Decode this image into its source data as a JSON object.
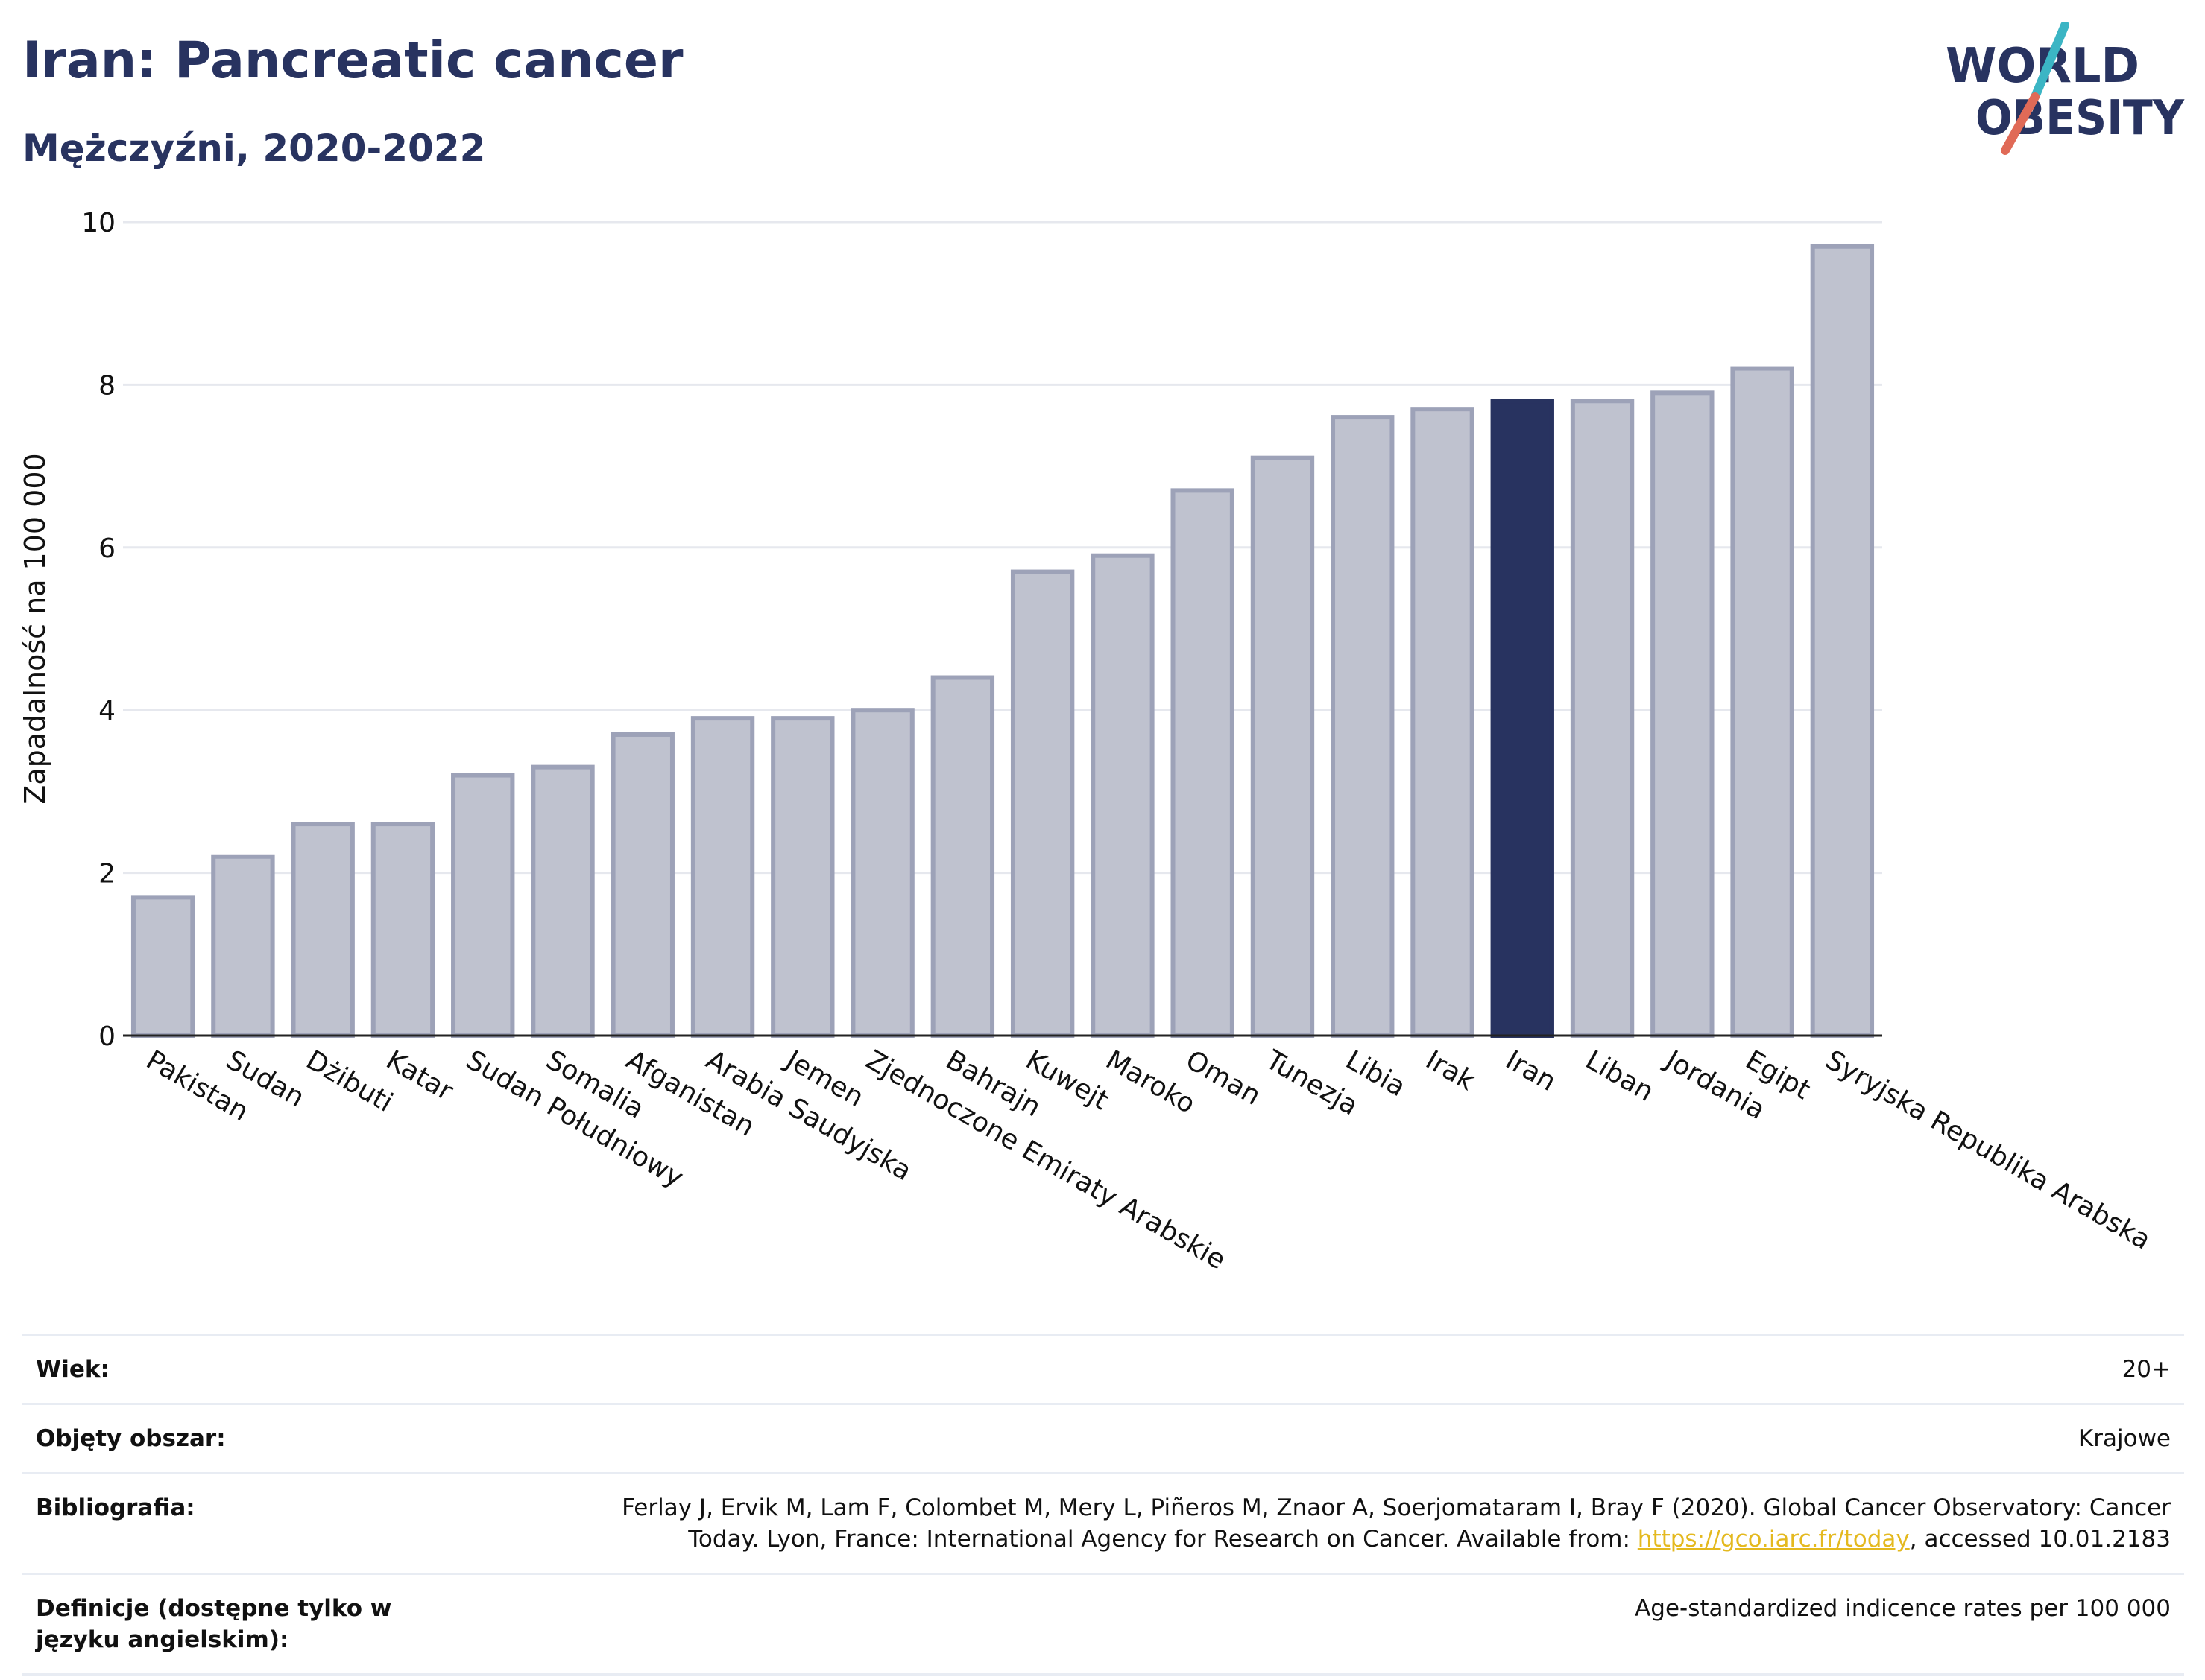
{
  "header": {
    "title": "Iran: Pancreatic cancer",
    "subtitle": "Mężczyźni, 2020-2022"
  },
  "logo": {
    "line1": "WORLD",
    "line2": "OBESITY",
    "colors": {
      "text": "#283360",
      "slash_top": "#3bb5c4",
      "slash_bottom": "#e06a57"
    }
  },
  "chart_data": {
    "type": "bar",
    "title": "",
    "xlabel": "",
    "ylabel": "Zapadalność na 100 000",
    "ylim": [
      0,
      10
    ],
    "yticks": [
      0,
      2,
      4,
      6,
      8,
      10
    ],
    "grid": true,
    "categories": [
      "Pakistan",
      "Sudan",
      "Dżibuti",
      "Katar",
      "Sudan Południowy",
      "Somalia",
      "Afganistan",
      "Arabia Saudyjska",
      "Jemen",
      "Zjednoczone Emiraty Arabskie",
      "Bahrajn",
      "Kuwejt",
      "Maroko",
      "Oman",
      "Tunezja",
      "Libia",
      "Irak",
      "Iran",
      "Liban",
      "Jordania",
      "Egipt",
      "Syryjska Republika Arabska"
    ],
    "values": [
      1.7,
      2.2,
      2.6,
      2.6,
      3.2,
      3.3,
      3.7,
      3.9,
      3.9,
      4.0,
      4.4,
      5.7,
      5.9,
      6.7,
      7.1,
      7.6,
      7.7,
      7.8,
      7.8,
      7.9,
      8.2,
      9.7
    ],
    "highlight": "Iran",
    "colors": {
      "bar": "#bfc2cf",
      "bar_edge": "#9da2b8",
      "highlight": "#283360",
      "grid": "#e6e8ee",
      "axis": "#222222"
    }
  },
  "meta": {
    "rows": [
      {
        "label": "Wiek:",
        "value": "20+"
      },
      {
        "label": "Objęty obszar:",
        "value": "Krajowe"
      },
      {
        "label": "Bibliografia:",
        "value_before": "Ferlay J, Ervik M, Lam F, Colombet M, Mery L, Piñeros M, Znaor A, Soerjomataram I, Bray F (2020). Global Cancer Observatory: Cancer Today. Lyon, France: International Agency for Research on Cancer. Available from: ",
        "link": "https://gco.iarc.fr/today",
        "value_after": ", accessed 10.01.2183"
      },
      {
        "label": "Definicje (dostępne tylko w języku angielskim):",
        "value": "Age-standardized indicence rates per 100 000"
      }
    ]
  }
}
